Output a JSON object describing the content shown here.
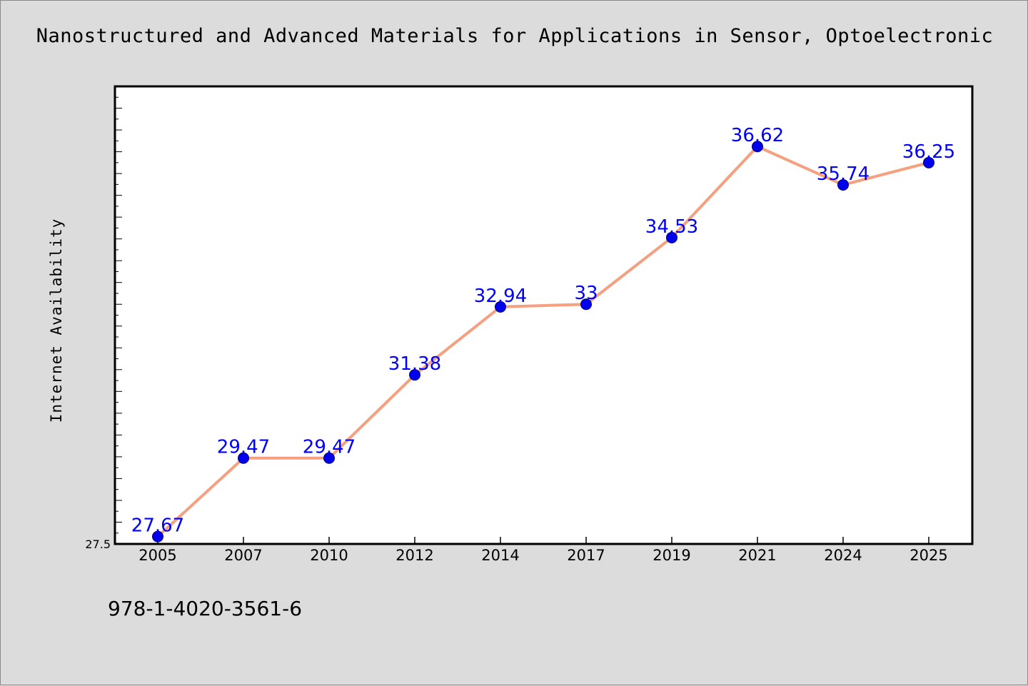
{
  "title": "Nanostructured and Advanced Materials for Applications in Sensor, Optoelectronic",
  "footer_text": "978-1-4020-3561-6",
  "chart_data": {
    "type": "line",
    "title": "Nanostructured and Advanced Materials for Applications in Sensor, Optoelectronic",
    "xlabel": "",
    "ylabel": "Internet Availability",
    "categories": [
      "2005",
      "2007",
      "2010",
      "2012",
      "2014",
      "2017",
      "2019",
      "2021",
      "2024",
      "2025"
    ],
    "series": [
      {
        "values": [
          27.67,
          29.47,
          29.47,
          31.38,
          32.94,
          33,
          34.53,
          36.62,
          35.74,
          36.25
        ],
        "labels": [
          "27.67",
          "29.47",
          "29.47",
          "31.38",
          "32.94",
          "33",
          "34.53",
          "36.62",
          "35.74",
          "36.25"
        ]
      }
    ],
    "ylim": [
      27.5,
      38
    ],
    "y_tick_labels": [
      "27.5"
    ],
    "grid": false,
    "line_color": "#f5a080",
    "marker_color": "#0000ee",
    "label_color": "#0000ff",
    "plot_background": "#ffffff",
    "page_background": "#dcdcdc"
  }
}
